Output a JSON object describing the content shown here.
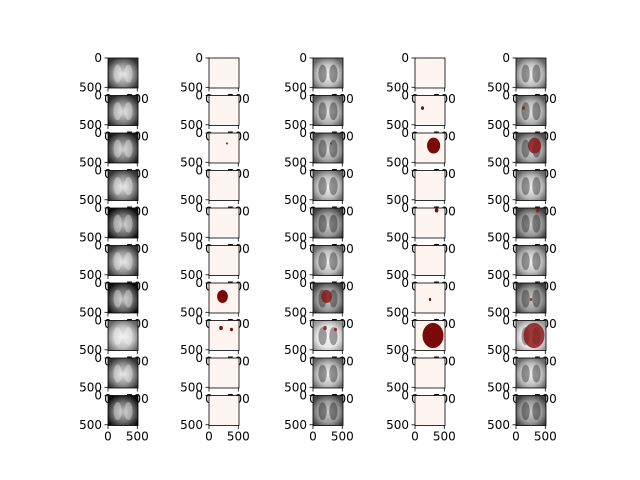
{
  "chart_data": {
    "type": "image-grid",
    "grid": {
      "rows": 10,
      "cols": 5
    },
    "image_extent": [
      0,
      512
    ],
    "ticks": {
      "x": [
        "0",
        "500"
      ],
      "y": [
        "0",
        "500"
      ]
    },
    "columns": [
      {
        "kind": "image"
      },
      {
        "kind": "mask"
      },
      {
        "kind": "overlay"
      },
      {
        "kind": "mask"
      },
      {
        "kind": "overlay"
      }
    ],
    "rows": [
      {
        "tone": 0.55,
        "c1": [],
        "c3": []
      },
      {
        "tone": 0.5,
        "c1": [],
        "c3": [
          [
            0.25,
            0.42,
            0.05
          ]
        ]
      },
      {
        "tone": 0.45,
        "c1": [
          [
            0.6,
            0.35,
            0.03
          ]
        ],
        "c3": [
          [
            0.62,
            0.42,
            0.22
          ]
        ]
      },
      {
        "tone": 0.55,
        "c1": [],
        "c3": []
      },
      {
        "tone": 0.4,
        "c1": [],
        "c3": [
          [
            0.72,
            0.08,
            0.06
          ]
        ]
      },
      {
        "tone": 0.55,
        "c1": [],
        "c3": []
      },
      {
        "tone": 0.4,
        "c1": [
          [
            0.45,
            0.45,
            0.18
          ]
        ],
        "c3": [
          [
            0.5,
            0.55,
            0.04
          ]
        ]
      },
      {
        "tone": 0.75,
        "c1": [
          [
            0.4,
            0.25,
            0.06
          ],
          [
            0.75,
            0.3,
            0.05
          ]
        ],
        "c3": [
          [
            0.6,
            0.5,
            0.35
          ]
        ]
      },
      {
        "tone": 0.55,
        "c1": [],
        "c3": []
      },
      {
        "tone": 0.4,
        "c1": [],
        "c3": []
      }
    ],
    "colors": {
      "mask_bg": "#fff5f0",
      "lesion": "#7a0a0a",
      "lesion_overlay": "#8b1a1a"
    }
  }
}
